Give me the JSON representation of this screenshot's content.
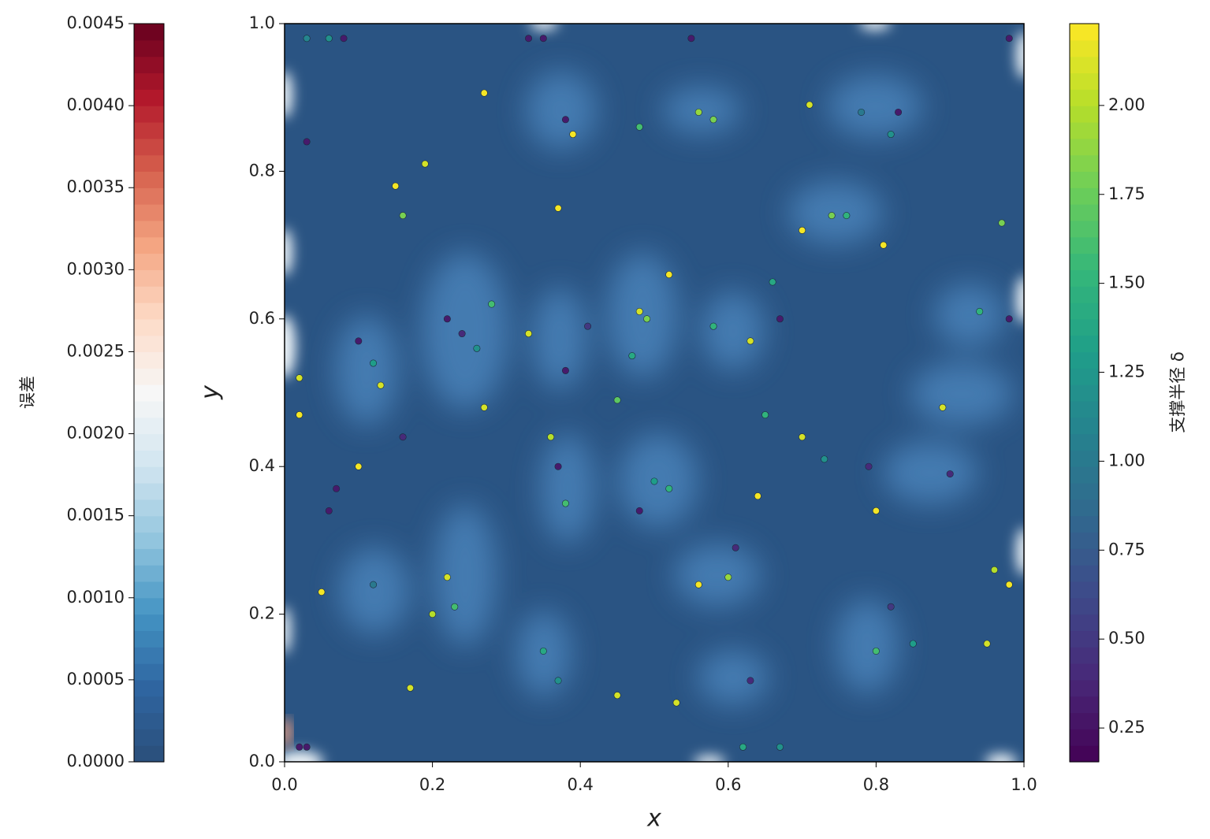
{
  "chart_data": {
    "type": "scatter",
    "xlabel": "x",
    "ylabel": "y",
    "xlim": [
      0,
      1
    ],
    "ylim": [
      0,
      1
    ],
    "xticks": [
      {
        "value": 0,
        "label": "0.0"
      },
      0.2,
      0.4,
      0.6,
      0.8,
      {
        "value": 1,
        "label": "1.0"
      }
    ],
    "yticks": [
      {
        "value": 0,
        "label": "0.0"
      },
      0.2,
      0.4,
      0.6,
      0.8,
      {
        "value": 1,
        "label": "1.0"
      }
    ],
    "x": [
      0.27,
      0.24,
      0.26,
      0.22,
      0.28,
      0.12,
      0.13,
      0.1,
      0.37,
      0.38,
      0.39,
      0.48,
      0.56,
      0.58,
      0.71,
      0.78,
      0.83,
      0.82,
      0.74,
      0.76,
      0.7,
      0.81,
      0.48,
      0.49,
      0.47,
      0.52,
      0.41,
      0.33,
      0.38,
      0.45,
      0.5,
      0.52,
      0.48,
      0.37,
      0.36,
      0.38,
      0.61,
      0.6,
      0.56,
      0.64,
      0.7,
      0.73,
      0.79,
      0.8,
      0.89,
      0.9,
      0.94,
      0.98,
      0.97,
      0.96,
      0.98,
      0.95,
      0.98,
      0.82,
      0.8,
      0.85,
      0.35,
      0.37,
      0.22,
      0.23,
      0.2,
      0.12,
      0.05,
      0.06,
      0.07,
      0.1,
      0.16,
      0.17,
      0.02,
      0.02,
      0.03,
      0.15,
      0.19,
      0.16,
      0.03,
      0.06,
      0.08,
      0.33,
      0.35,
      0.55,
      0.62,
      0.45,
      0.67,
      0.02,
      0.03,
      0.53,
      0.63,
      0.58,
      0.63,
      0.67,
      0.66,
      0.65,
      0.27
    ],
    "y": [
      0.906,
      0.58,
      0.56,
      0.6,
      0.62,
      0.54,
      0.51,
      0.57,
      0.75,
      0.87,
      0.85,
      0.86,
      0.88,
      0.87,
      0.89,
      0.88,
      0.88,
      0.85,
      0.74,
      0.74,
      0.72,
      0.7,
      0.61,
      0.6,
      0.55,
      0.66,
      0.59,
      0.58,
      0.53,
      0.49,
      0.38,
      0.37,
      0.34,
      0.4,
      0.44,
      0.35,
      0.29,
      0.25,
      0.24,
      0.36,
      0.44,
      0.41,
      0.4,
      0.34,
      0.48,
      0.39,
      0.61,
      0.6,
      0.73,
      0.26,
      0.24,
      0.16,
      0.98,
      0.21,
      0.15,
      0.16,
      0.15,
      0.11,
      0.25,
      0.21,
      0.2,
      0.24,
      0.23,
      0.34,
      0.37,
      0.4,
      0.44,
      0.1,
      0.52,
      0.47,
      0.84,
      0.78,
      0.81,
      0.74,
      0.98,
      0.98,
      0.98,
      0.98,
      0.98,
      0.98,
      0.02,
      0.09,
      0.02,
      0.02,
      0.02,
      0.08,
      0.11,
      0.59,
      0.57,
      0.6,
      0.65,
      0.47,
      0.48
    ],
    "c": [
      2.2,
      0.4,
      1.2,
      0.3,
      1.6,
      1.3,
      2.1,
      0.3,
      2.2,
      0.3,
      2.2,
      1.6,
      1.9,
      1.8,
      2.1,
      1.0,
      0.3,
      1.2,
      1.8,
      1.5,
      2.2,
      2.2,
      2.1,
      1.8,
      1.4,
      2.2,
      0.5,
      2.1,
      0.3,
      1.7,
      1.3,
      1.5,
      0.3,
      0.3,
      2.0,
      1.6,
      0.4,
      1.9,
      2.2,
      2.2,
      2.1,
      1.2,
      0.4,
      2.2,
      2.1,
      0.4,
      1.5,
      0.3,
      1.8,
      2.0,
      2.2,
      2.1,
      0.3,
      0.5,
      1.6,
      1.3,
      1.4,
      1.2,
      2.1,
      1.6,
      2.0,
      1.0,
      2.2,
      0.3,
      0.3,
      2.2,
      0.4,
      2.1,
      2.1,
      2.2,
      0.3,
      2.2,
      2.1,
      1.8,
      1.1,
      1.2,
      0.3,
      0.3,
      0.3,
      0.3,
      1.4,
      2.1,
      1.2,
      0.3,
      0.3,
      2.1,
      0.4,
      1.5,
      2.1,
      0.3,
      1.4,
      1.5,
      2.1
    ],
    "colorbar": {
      "label": "支撑半径 δ",
      "colormap": "viridis",
      "lim": [
        0.155,
        2.23
      ],
      "ticks": [
        {
          "value": 0.25,
          "label": "0.25"
        },
        {
          "value": 0.5,
          "label": "0.50"
        },
        {
          "value": 0.75,
          "label": "0.75"
        },
        {
          "value": 1,
          "label": "1.00"
        },
        {
          "value": 1.25,
          "label": "1.25"
        },
        {
          "value": 1.5,
          "label": "1.50"
        },
        {
          "value": 1.75,
          "label": "1.75"
        },
        {
          "value": 2,
          "label": "2.00"
        }
      ]
    },
    "error_colorbar": {
      "label": "误差",
      "colormap": "RdBu_r",
      "lim": [
        0,
        0.0045
      ],
      "ticks": [
        {
          "value": 0,
          "label": "0.0000"
        },
        {
          "value": 0.0005,
          "label": "0.0005"
        },
        {
          "value": 0.001,
          "label": "0.0010"
        },
        {
          "value": 0.0015,
          "label": "0.0015"
        },
        {
          "value": 0.002,
          "label": "0.0020"
        },
        {
          "value": 0.0025,
          "label": "0.0025"
        },
        {
          "value": 0.003,
          "label": "0.0030"
        },
        {
          "value": 0.0035,
          "label": "0.0035"
        },
        {
          "value": 0.004,
          "label": "0.0040"
        },
        {
          "value": 0.0045,
          "label": "0.0045"
        }
      ]
    }
  }
}
